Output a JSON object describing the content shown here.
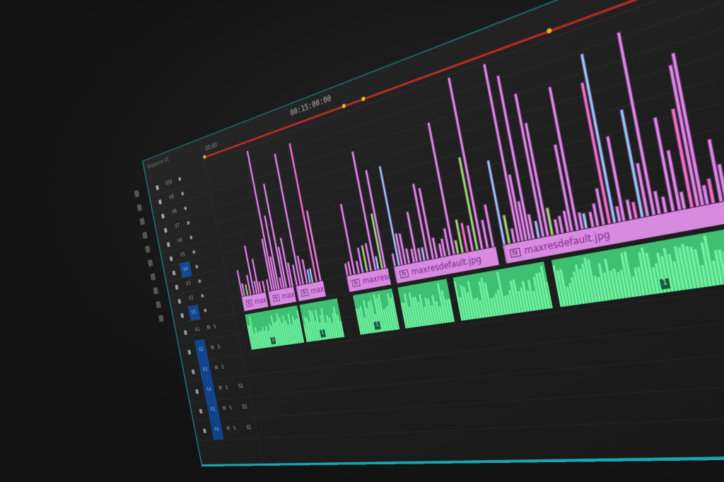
{
  "ruler": {
    "timecode": "00:15:00:00",
    "sequence_time": "00:00",
    "sequence_name": "Sequence 01"
  },
  "tracks": {
    "video": [
      {
        "label": "V10",
        "on": false
      },
      {
        "label": "V9",
        "on": false
      },
      {
        "label": "V8",
        "on": false
      },
      {
        "label": "V7",
        "on": false
      },
      {
        "label": "V6",
        "on": false
      },
      {
        "label": "V5",
        "on": false
      },
      {
        "label": "V4",
        "on": true
      },
      {
        "label": "V3",
        "on": false
      },
      {
        "label": "V2",
        "on": false
      },
      {
        "label": "V1",
        "on": true
      }
    ],
    "audio": [
      {
        "label": "A1",
        "on": false,
        "controls": "M S",
        "volume": ""
      },
      {
        "label": "A2",
        "on": true,
        "controls": "M S",
        "volume": ""
      },
      {
        "label": "A3",
        "on": true,
        "controls": "M S",
        "volume": ""
      },
      {
        "label": "A4",
        "on": true,
        "controls": "M S",
        "volume": "S1"
      },
      {
        "label": "A5",
        "on": true,
        "controls": "M S",
        "volume": "S1"
      },
      {
        "label": "A6",
        "on": true,
        "controls": "M S",
        "volume": "S1"
      }
    ]
  },
  "video_clips": [
    {
      "name": "max",
      "fx": "fx"
    },
    {
      "name": "max",
      "fx": "fx"
    },
    {
      "name": "maxre",
      "fx": "fx"
    },
    {
      "name": "maxresde",
      "fx": "fx"
    },
    {
      "name": "maxresdefault.jpg",
      "fx": "fx"
    },
    {
      "name": "maxresdefault.jpg",
      "fx": "fx"
    }
  ],
  "audio_clips": [
    {
      "marker": "1"
    },
    {
      "marker": "1"
    },
    {
      "marker": "1"
    },
    {
      "marker": ""
    },
    {
      "marker": ""
    },
    {
      "marker": "1"
    }
  ],
  "colors": {
    "video_clip": "#d88ae0",
    "audio_clip": "#3fbf72",
    "playhead_workarea": "#c0281e",
    "track_selected": "#0f4a9a",
    "panel_border": "#1aa3b0"
  }
}
